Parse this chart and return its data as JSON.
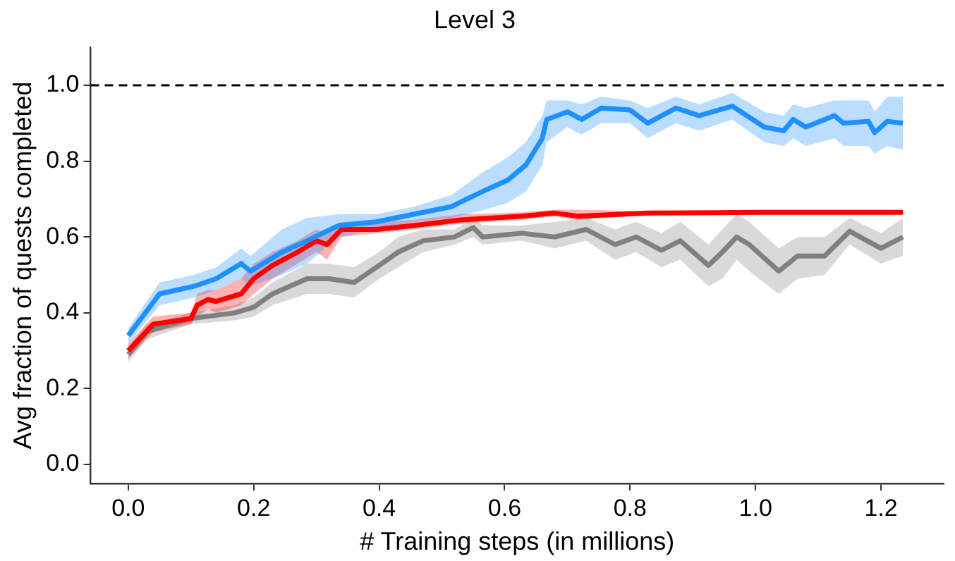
{
  "chart_data": {
    "type": "line",
    "title": "Level 3",
    "xlabel": "# Training steps (in millions)",
    "ylabel": "Avg fraction of quests completed",
    "xlim": [
      -0.06,
      1.3
    ],
    "xticks": [
      {
        "value": 0,
        "label": "0.0"
      },
      {
        "value": 0.2,
        "label": "0.2"
      },
      {
        "value": 0.4,
        "label": "0.4"
      },
      {
        "value": 0.6,
        "label": "0.6"
      },
      {
        "value": 0.8,
        "label": "0.8"
      },
      {
        "value": 1,
        "label": "1.0"
      },
      {
        "value": 1.2,
        "label": "1.2"
      }
    ],
    "ylim": [
      -0.05,
      1.1
    ],
    "yticks": [
      {
        "value": 0,
        "label": "0.0"
      },
      {
        "value": 0.2,
        "label": "0.2"
      },
      {
        "value": 0.4,
        "label": "0.4"
      },
      {
        "value": 0.6,
        "label": "0.6"
      },
      {
        "value": 0.8,
        "label": "0.8"
      },
      {
        "value": 1,
        "label": "1.0"
      }
    ],
    "grid": false,
    "legend": false,
    "marker": "none",
    "line_style": "solid",
    "ref_lines": [
      {
        "axis": "y",
        "value": 1.0,
        "label": null,
        "color": "#000000",
        "line_style": "dashed"
      }
    ],
    "series": [
      {
        "color": "#1e90ff",
        "x": [
          0,
          0.05,
          0.105,
          0.14,
          0.18,
          0.195,
          0.245,
          0.285,
          0.335,
          0.395,
          0.455,
          0.515,
          0.565,
          0.605,
          0.634,
          0.66,
          0.667,
          0.7,
          0.723,
          0.754,
          0.8,
          0.828,
          0.873,
          0.91,
          0.963,
          1.014,
          1.045,
          1.06,
          1.08,
          1.126,
          1.14,
          1.18,
          1.19,
          1.21,
          1.235
        ],
        "values": [
          0.34,
          0.45,
          0.47,
          0.49,
          0.53,
          0.51,
          0.56,
          0.59,
          0.63,
          0.64,
          0.66,
          0.68,
          0.72,
          0.75,
          0.79,
          0.86,
          0.91,
          0.93,
          0.91,
          0.94,
          0.935,
          0.9,
          0.94,
          0.92,
          0.945,
          0.89,
          0.88,
          0.91,
          0.89,
          0.92,
          0.9,
          0.905,
          0.875,
          0.905,
          0.9
        ],
        "lower": [
          0.32,
          0.42,
          0.44,
          0.46,
          0.49,
          0.47,
          0.5,
          0.53,
          0.6,
          0.62,
          0.64,
          0.65,
          0.67,
          0.69,
          0.72,
          0.79,
          0.85,
          0.89,
          0.87,
          0.9,
          0.9,
          0.86,
          0.9,
          0.88,
          0.91,
          0.85,
          0.84,
          0.86,
          0.84,
          0.86,
          0.84,
          0.84,
          0.82,
          0.84,
          0.83
        ],
        "upper": [
          0.36,
          0.48,
          0.5,
          0.52,
          0.57,
          0.55,
          0.62,
          0.65,
          0.66,
          0.66,
          0.68,
          0.71,
          0.77,
          0.81,
          0.85,
          0.92,
          0.96,
          0.96,
          0.95,
          0.97,
          0.96,
          0.94,
          0.97,
          0.95,
          0.98,
          0.93,
          0.92,
          0.95,
          0.94,
          0.96,
          0.96,
          0.96,
          0.93,
          0.97,
          0.97
        ]
      },
      {
        "color": "#ff0000",
        "x": [
          0,
          0.04,
          0.1,
          0.11,
          0.127,
          0.14,
          0.18,
          0.2,
          0.23,
          0.27,
          0.3,
          0.317,
          0.34,
          0.396,
          0.455,
          0.53,
          0.627,
          0.68,
          0.716,
          0.83,
          1.0,
          1.235
        ],
        "values": [
          0.3,
          0.37,
          0.385,
          0.42,
          0.435,
          0.43,
          0.45,
          0.49,
          0.525,
          0.56,
          0.59,
          0.58,
          0.62,
          0.62,
          0.63,
          0.645,
          0.655,
          0.663,
          0.655,
          0.663,
          0.665,
          0.665
        ],
        "lower": [
          0.28,
          0.35,
          0.37,
          0.39,
          0.41,
          0.4,
          0.42,
          0.45,
          0.49,
          0.53,
          0.56,
          0.54,
          0.6,
          0.61,
          0.62,
          0.635,
          0.645,
          0.655,
          0.645,
          0.658,
          0.66,
          0.66
        ],
        "upper": [
          0.32,
          0.39,
          0.4,
          0.45,
          0.46,
          0.46,
          0.49,
          0.53,
          0.56,
          0.59,
          0.62,
          0.61,
          0.64,
          0.64,
          0.645,
          0.66,
          0.665,
          0.672,
          0.672,
          0.668,
          0.67,
          0.67
        ]
      },
      {
        "color": "#808080",
        "x": [
          0,
          0.03,
          0.1,
          0.17,
          0.2,
          0.23,
          0.285,
          0.32,
          0.36,
          0.4,
          0.43,
          0.47,
          0.52,
          0.55,
          0.565,
          0.627,
          0.68,
          0.73,
          0.776,
          0.81,
          0.85,
          0.88,
          0.925,
          0.947,
          0.97,
          0.99,
          1.037,
          1.067,
          1.11,
          1.15,
          1.2,
          1.235
        ],
        "values": [
          0.29,
          0.35,
          0.385,
          0.4,
          0.415,
          0.45,
          0.49,
          0.49,
          0.48,
          0.525,
          0.56,
          0.59,
          0.6,
          0.625,
          0.6,
          0.61,
          0.6,
          0.62,
          0.58,
          0.6,
          0.565,
          0.59,
          0.525,
          0.56,
          0.6,
          0.58,
          0.51,
          0.55,
          0.55,
          0.615,
          0.57,
          0.6
        ],
        "lower": [
          0.27,
          0.33,
          0.37,
          0.38,
          0.39,
          0.42,
          0.45,
          0.45,
          0.44,
          0.49,
          0.52,
          0.56,
          0.58,
          0.6,
          0.58,
          0.59,
          0.57,
          0.59,
          0.54,
          0.56,
          0.52,
          0.54,
          0.47,
          0.49,
          0.54,
          0.51,
          0.45,
          0.49,
          0.5,
          0.58,
          0.53,
          0.55
        ],
        "upper": [
          0.31,
          0.37,
          0.4,
          0.42,
          0.44,
          0.48,
          0.53,
          0.53,
          0.52,
          0.56,
          0.6,
          0.62,
          0.62,
          0.65,
          0.63,
          0.63,
          0.64,
          0.65,
          0.62,
          0.64,
          0.61,
          0.64,
          0.58,
          0.62,
          0.66,
          0.64,
          0.57,
          0.6,
          0.6,
          0.65,
          0.61,
          0.65
        ]
      }
    ]
  }
}
